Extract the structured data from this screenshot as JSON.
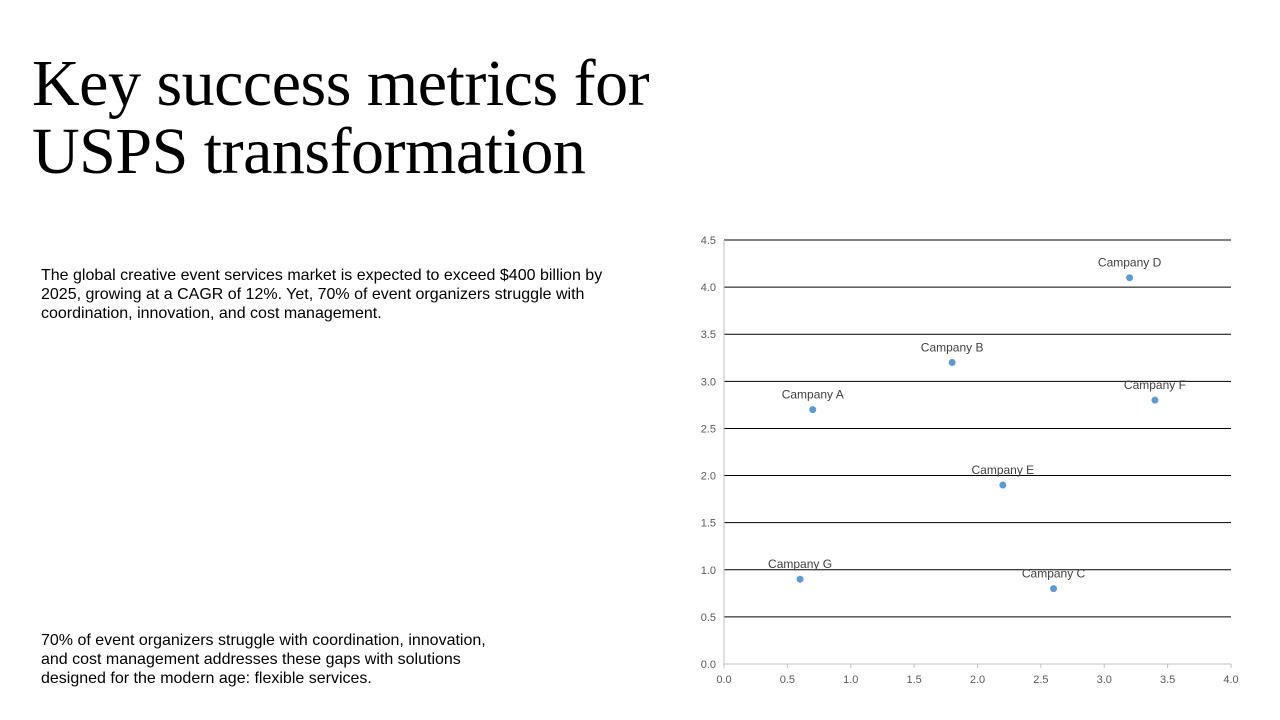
{
  "slide": {
    "title_lines": [
      "Key success metrics for",
      "USPS transformation"
    ],
    "paragraph_top": "The global creative event services market is expected to exceed $400 billion by\n2025, growing at a CAGR of 12%. Yet, 70% of event organizers struggle with\ncoordination, innovation, and cost management.",
    "paragraph_bottom": "70% of event organizers struggle with coordination, innovation,\nand cost management addresses these gaps with solutions\ndesigned for the modern age: flexible services."
  },
  "chart_data": {
    "type": "scatter",
    "title": "",
    "xlabel": "",
    "ylabel": "",
    "xlim": [
      0,
      4
    ],
    "ylim": [
      0,
      4.5
    ],
    "x_ticks": [
      "0.0",
      "0.5",
      "1.0",
      "1.5",
      "2.0",
      "2.5",
      "3.0",
      "3.5",
      "4.0"
    ],
    "y_ticks": [
      "0.0",
      "0.5",
      "1.0",
      "1.5",
      "2.0",
      "2.5",
      "3.0",
      "3.5",
      "4.0",
      "4.5"
    ],
    "grid": "horizontal",
    "marker_color": "#5B9BD5",
    "points": [
      {
        "label": "Campany A",
        "x": 0.7,
        "y": 2.7
      },
      {
        "label": "Campany B",
        "x": 1.8,
        "y": 3.2
      },
      {
        "label": "Campany C",
        "x": 2.6,
        "y": 0.8
      },
      {
        "label": "Campany D",
        "x": 3.2,
        "y": 4.1
      },
      {
        "label": "Campany E",
        "x": 2.2,
        "y": 1.9
      },
      {
        "label": "Campany F",
        "x": 3.4,
        "y": 2.8
      },
      {
        "label": "Campany G",
        "x": 0.6,
        "y": 0.9
      }
    ]
  }
}
